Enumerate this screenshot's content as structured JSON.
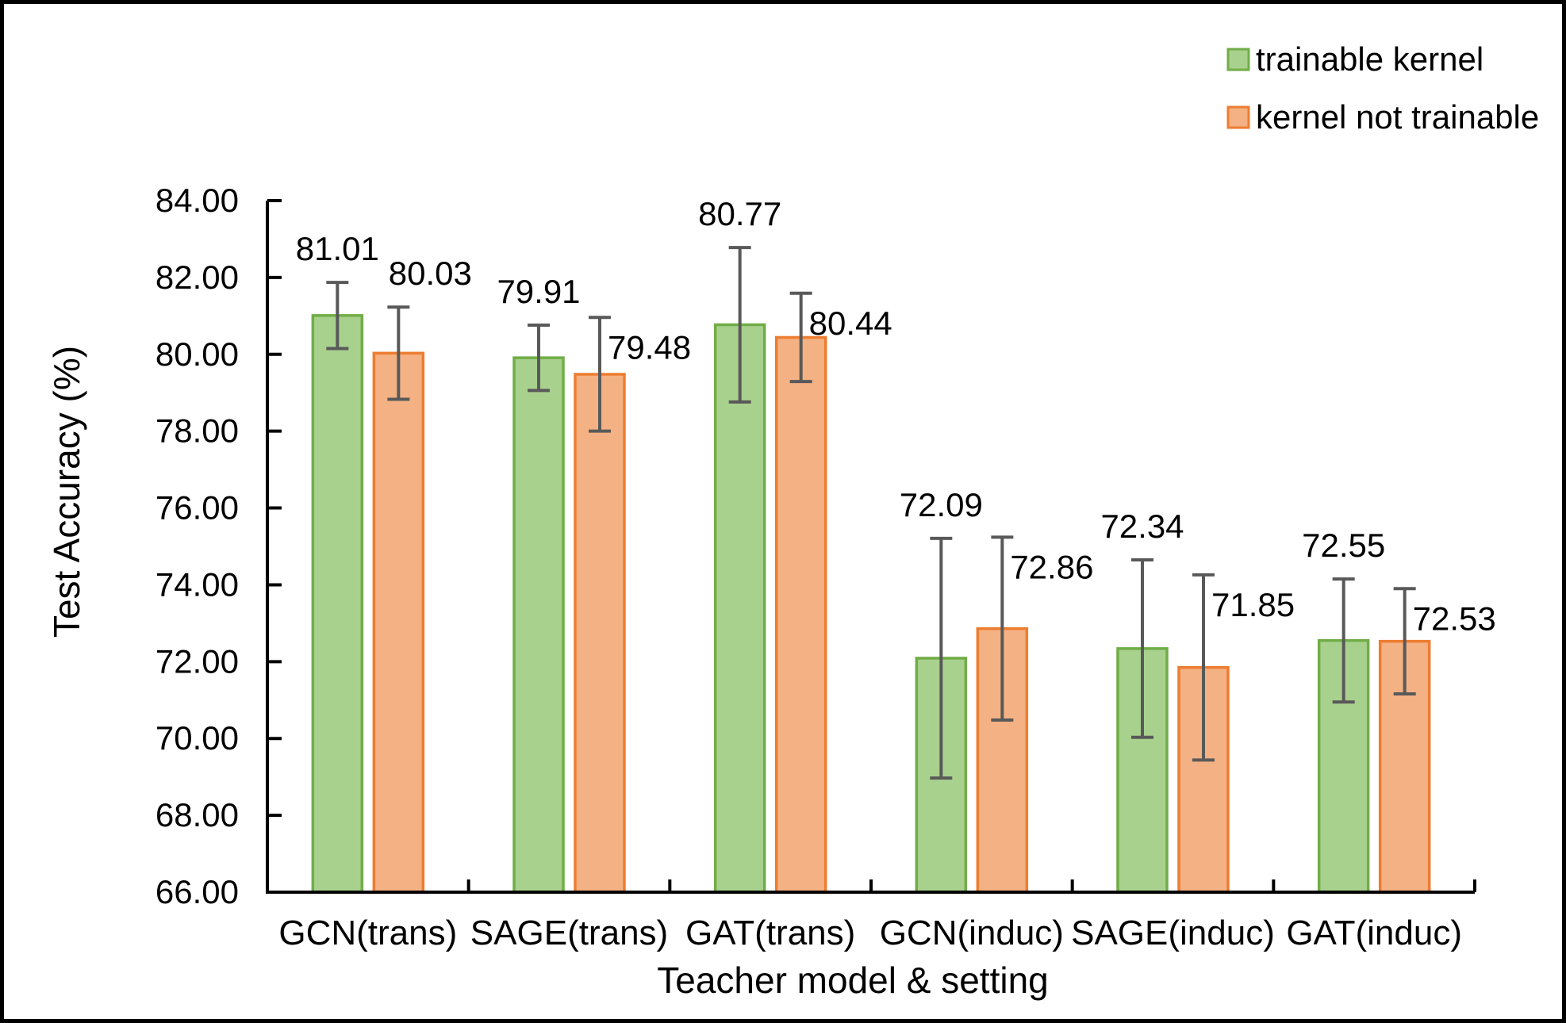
{
  "page": {
    "background": "#ffffff",
    "frame_color": "#000000"
  },
  "chart_data": {
    "type": "bar",
    "title": "",
    "xlabel": "Teacher model & setting",
    "ylabel": "Test Accuracy (%)",
    "ylim": [
      66,
      84
    ],
    "ytick_step": 2,
    "ytick_labels": [
      "66.00",
      "68.00",
      "70.00",
      "72.00",
      "74.00",
      "76.00",
      "78.00",
      "80.00",
      "82.00",
      "84.00"
    ],
    "grid": false,
    "legend_position": "top-right",
    "axis_color": "#000000",
    "error_bar_color": "#595959",
    "data_label_format": "0.00",
    "categories": [
      "GCN(trans)",
      "SAGE(trans)",
      "GAT(trans)",
      "GCN(induc)",
      "SAGE(induc)",
      "GAT(induc)"
    ],
    "series": [
      {
        "name": "trainable kernel",
        "fill": "#A9D18E",
        "border": "#70AD47",
        "values": [
          81.01,
          79.91,
          80.77,
          72.09,
          72.34,
          72.55
        ],
        "errors": [
          0.86,
          0.85,
          2.01,
          3.12,
          2.31,
          1.6
        ],
        "label_placement": [
          "above",
          "above",
          "above",
          "above",
          "above",
          "above"
        ]
      },
      {
        "name": "kernel not trainable",
        "fill": "#F4B183",
        "border": "#ED7D31",
        "values": [
          80.03,
          79.48,
          80.44,
          72.86,
          71.85,
          72.53
        ],
        "errors": [
          1.2,
          1.48,
          1.15,
          2.38,
          2.41,
          1.37
        ],
        "label_placement": [
          "above-right",
          "right",
          "right",
          "right",
          "right",
          "right"
        ]
      }
    ]
  }
}
